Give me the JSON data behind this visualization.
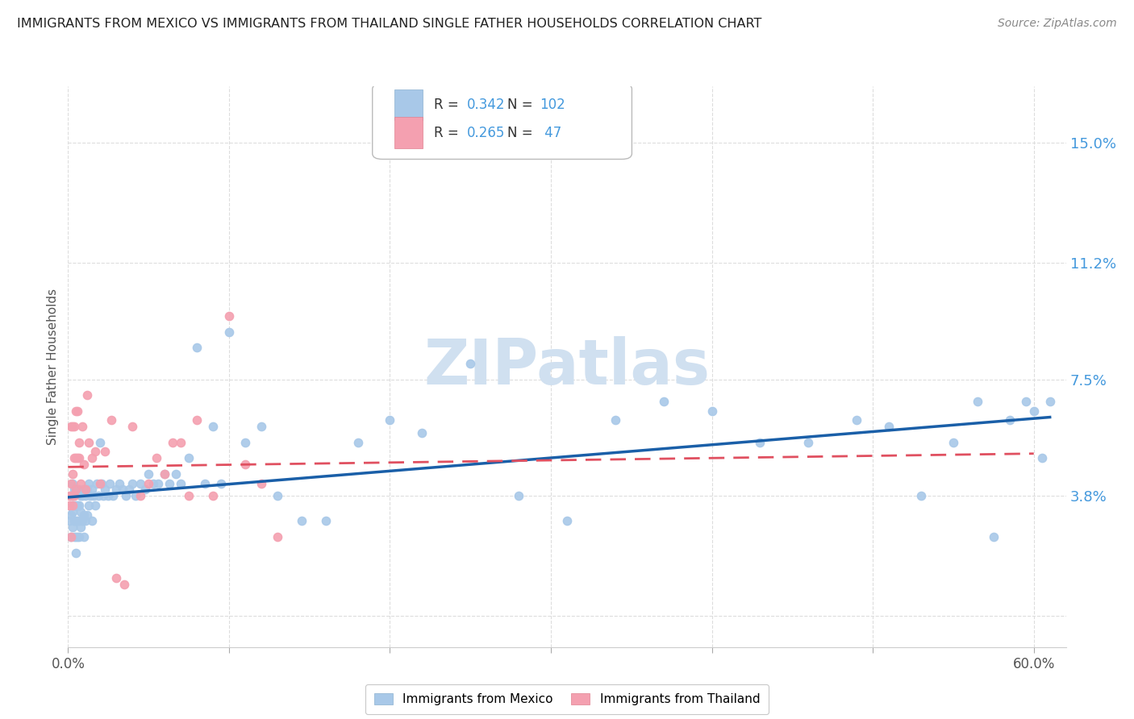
{
  "title": "IMMIGRANTS FROM MEXICO VS IMMIGRANTS FROM THAILAND SINGLE FATHER HOUSEHOLDS CORRELATION CHART",
  "source": "Source: ZipAtlas.com",
  "ylabel": "Single Father Households",
  "xlim": [
    0.0,
    0.62
  ],
  "ylim": [
    -0.01,
    0.168
  ],
  "yticks": [
    0.0,
    0.038,
    0.075,
    0.112,
    0.15
  ],
  "ytick_labels": [
    "",
    "3.8%",
    "7.5%",
    "11.2%",
    "15.0%"
  ],
  "xticks": [
    0.0,
    0.1,
    0.2,
    0.3,
    0.4,
    0.5,
    0.6
  ],
  "xtick_labels": [
    "0.0%",
    "",
    "",
    "",
    "",
    "",
    "60.0%"
  ],
  "mexico_R": 0.342,
  "mexico_N": 102,
  "thailand_R": 0.265,
  "thailand_N": 47,
  "mexico_color": "#a8c8e8",
  "thailand_color": "#f4a0b0",
  "mexico_line_color": "#1a5fa8",
  "thailand_line_color": "#e05060",
  "watermark": "ZIPatlas",
  "watermark_color": "#d0e0f0",
  "background_color": "#ffffff",
  "grid_color": "#dddddd",
  "title_color": "#222222",
  "right_axis_label_color": "#4499dd",
  "mexico_scatter_x": [
    0.001,
    0.002,
    0.002,
    0.002,
    0.003,
    0.003,
    0.003,
    0.003,
    0.004,
    0.004,
    0.004,
    0.004,
    0.005,
    0.005,
    0.005,
    0.005,
    0.005,
    0.006,
    0.006,
    0.006,
    0.006,
    0.007,
    0.007,
    0.007,
    0.007,
    0.008,
    0.008,
    0.008,
    0.009,
    0.009,
    0.01,
    0.01,
    0.01,
    0.011,
    0.011,
    0.012,
    0.012,
    0.013,
    0.013,
    0.014,
    0.015,
    0.015,
    0.016,
    0.017,
    0.018,
    0.019,
    0.02,
    0.021,
    0.022,
    0.023,
    0.025,
    0.026,
    0.028,
    0.03,
    0.032,
    0.034,
    0.036,
    0.038,
    0.04,
    0.042,
    0.045,
    0.048,
    0.05,
    0.053,
    0.056,
    0.06,
    0.063,
    0.067,
    0.07,
    0.075,
    0.08,
    0.085,
    0.09,
    0.095,
    0.1,
    0.11,
    0.12,
    0.13,
    0.145,
    0.16,
    0.18,
    0.2,
    0.22,
    0.25,
    0.28,
    0.31,
    0.34,
    0.37,
    0.4,
    0.43,
    0.46,
    0.49,
    0.51,
    0.53,
    0.55,
    0.565,
    0.575,
    0.585,
    0.595,
    0.6,
    0.605,
    0.61
  ],
  "mexico_scatter_y": [
    0.03,
    0.025,
    0.032,
    0.038,
    0.028,
    0.033,
    0.038,
    0.042,
    0.025,
    0.03,
    0.035,
    0.04,
    0.02,
    0.025,
    0.03,
    0.035,
    0.04,
    0.025,
    0.03,
    0.035,
    0.04,
    0.025,
    0.03,
    0.035,
    0.04,
    0.028,
    0.033,
    0.038,
    0.03,
    0.038,
    0.025,
    0.032,
    0.04,
    0.03,
    0.038,
    0.032,
    0.04,
    0.035,
    0.042,
    0.038,
    0.03,
    0.04,
    0.038,
    0.035,
    0.042,
    0.038,
    0.055,
    0.042,
    0.038,
    0.04,
    0.038,
    0.042,
    0.038,
    0.04,
    0.042,
    0.04,
    0.038,
    0.04,
    0.042,
    0.038,
    0.042,
    0.04,
    0.045,
    0.042,
    0.042,
    0.045,
    0.042,
    0.045,
    0.042,
    0.05,
    0.085,
    0.042,
    0.06,
    0.042,
    0.09,
    0.055,
    0.06,
    0.038,
    0.03,
    0.03,
    0.055,
    0.062,
    0.058,
    0.08,
    0.038,
    0.03,
    0.062,
    0.068,
    0.065,
    0.055,
    0.055,
    0.062,
    0.06,
    0.038,
    0.055,
    0.068,
    0.025,
    0.062,
    0.068,
    0.065,
    0.05,
    0.068
  ],
  "thailand_scatter_x": [
    0.001,
    0.001,
    0.002,
    0.002,
    0.002,
    0.002,
    0.003,
    0.003,
    0.003,
    0.003,
    0.004,
    0.004,
    0.004,
    0.005,
    0.005,
    0.005,
    0.006,
    0.006,
    0.007,
    0.007,
    0.008,
    0.009,
    0.01,
    0.011,
    0.012,
    0.013,
    0.015,
    0.017,
    0.02,
    0.023,
    0.027,
    0.03,
    0.035,
    0.04,
    0.045,
    0.05,
    0.055,
    0.06,
    0.065,
    0.07,
    0.075,
    0.08,
    0.09,
    0.1,
    0.11,
    0.12,
    0.13
  ],
  "thailand_scatter_y": [
    0.035,
    0.038,
    0.038,
    0.042,
    0.025,
    0.06,
    0.035,
    0.038,
    0.045,
    0.06,
    0.038,
    0.05,
    0.06,
    0.04,
    0.05,
    0.065,
    0.05,
    0.065,
    0.05,
    0.055,
    0.042,
    0.06,
    0.048,
    0.04,
    0.07,
    0.055,
    0.05,
    0.052,
    0.042,
    0.052,
    0.062,
    0.012,
    0.01,
    0.06,
    0.038,
    0.042,
    0.05,
    0.045,
    0.055,
    0.055,
    0.038,
    0.062,
    0.038,
    0.095,
    0.048,
    0.042,
    0.025
  ]
}
